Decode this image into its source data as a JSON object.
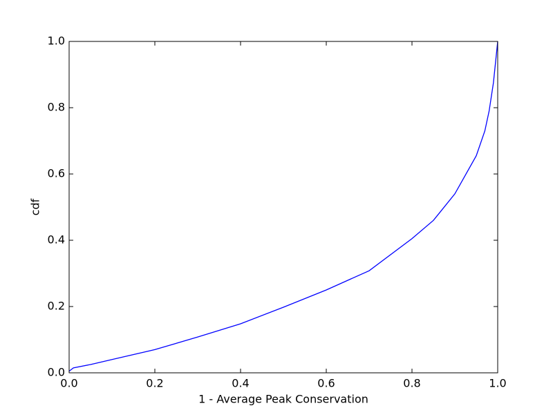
{
  "chart_data": {
    "type": "line",
    "xlabel": "1 - Average Peak Conservation",
    "ylabel": "cdf",
    "x": [
      0.0,
      0.01,
      0.05,
      0.1,
      0.2,
      0.3,
      0.4,
      0.5,
      0.6,
      0.7,
      0.8,
      0.85,
      0.9,
      0.95,
      0.97,
      0.98,
      0.99,
      1.0
    ],
    "series": [
      {
        "color": "#0000ff",
        "values": [
          0.005,
          0.015,
          0.025,
          0.04,
          0.07,
          0.108,
          0.148,
          0.198,
          0.25,
          0.308,
          0.405,
          0.46,
          0.54,
          0.655,
          0.73,
          0.79,
          0.875,
          1.0
        ]
      }
    ],
    "xlim": [
      0.0,
      1.0
    ],
    "ylim": [
      0.0,
      1.0
    ],
    "xticks": [
      {
        "value": 0,
        "label": "0.0"
      },
      {
        "value": 0.2,
        "label": "0.2"
      },
      {
        "value": 0.4,
        "label": "0.4"
      },
      {
        "value": 0.6,
        "label": "0.6"
      },
      {
        "value": 0.8,
        "label": "0.8"
      },
      {
        "value": 1,
        "label": "1.0"
      }
    ],
    "yticks": [
      {
        "value": 0,
        "label": "0.0"
      },
      {
        "value": 0.2,
        "label": "0.2"
      },
      {
        "value": 0.4,
        "label": "0.4"
      },
      {
        "value": 0.6,
        "label": "0.6"
      },
      {
        "value": 0.8,
        "label": "0.8"
      },
      {
        "value": 1,
        "label": "1.0"
      }
    ],
    "grid": false
  }
}
